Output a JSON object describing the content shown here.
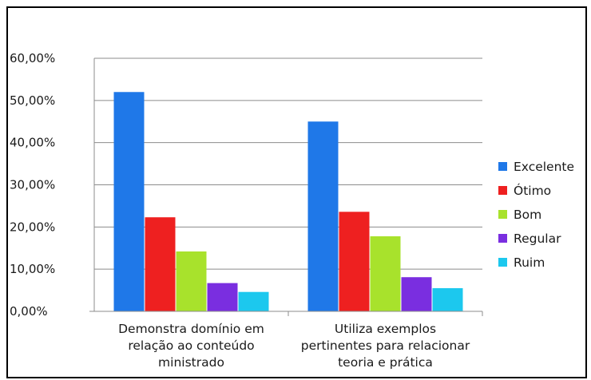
{
  "chart_data": {
    "type": "bar",
    "categories": [
      [
        "Demonstra domínio em",
        "relação ao conteúdo",
        "ministrado"
      ],
      [
        "Utiliza exemplos",
        "pertinentes para relacionar",
        "teoria e prática"
      ]
    ],
    "series": [
      {
        "name": "Excelente",
        "color": "#1f78e8",
        "values": [
          52.0,
          45.0
        ]
      },
      {
        "name": "Ótimo",
        "color": "#ee2020",
        "values": [
          22.3,
          23.6
        ]
      },
      {
        "name": "Bom",
        "color": "#a8e22c",
        "values": [
          14.2,
          17.8
        ]
      },
      {
        "name": "Regular",
        "color": "#7a2ee0",
        "values": [
          6.7,
          8.1
        ]
      },
      {
        "name": "Ruim",
        "color": "#1cc8ee",
        "values": [
          4.6,
          5.5
        ]
      }
    ],
    "yticks": [
      "0,00%",
      "10,00%",
      "20,00%",
      "30,00%",
      "40,00%",
      "50,00%",
      "60,00%"
    ],
    "ylim": [
      0,
      60
    ],
    "grid": true,
    "legend": "right"
  }
}
